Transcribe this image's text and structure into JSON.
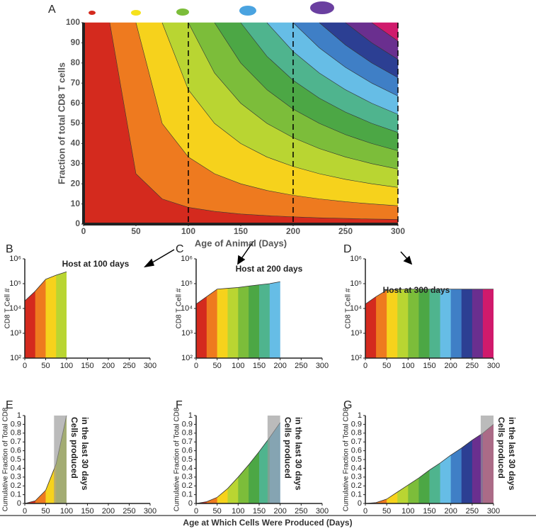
{
  "palette": {
    "band_edges": [
      0,
      25,
      50,
      75,
      100,
      125,
      150,
      175,
      200,
      225,
      250,
      275,
      300
    ],
    "colors": [
      "#d42a1e",
      "#ee7a1f",
      "#f6d21c",
      "#b9d532",
      "#7cbd3a",
      "#4ca745",
      "#4fb48e",
      "#66bde6",
      "#3f7fc6",
      "#2c3f93",
      "#6a2f8f",
      "#d01a6c"
    ]
  },
  "footer": {
    "x_label": "Age at Which Cells Were Produced (Days)"
  },
  "chart_data": [
    {
      "type": "contour",
      "panel": "A",
      "x_label": "Age of Animal (Days)",
      "y_label": "Fraction of total CD8 T cells",
      "xlim": [
        0,
        300
      ],
      "ylim": [
        0,
        100
      ],
      "xticks": [
        0,
        50,
        100,
        150,
        200,
        250,
        300
      ],
      "yticks": [
        0,
        10,
        20,
        30,
        40,
        50,
        60,
        70,
        80,
        90,
        100
      ],
      "vlines": [
        100,
        200,
        300
      ],
      "contours": [
        {
          "x": [
            25,
            50,
            75,
            100,
            125,
            150,
            175,
            200,
            225,
            250,
            275,
            300
          ],
          "values": [
            100,
            25,
            12.5,
            8.3,
            6.3,
            5,
            4.2,
            3.6,
            3.1,
            2.8,
            2.5,
            2.3
          ]
        },
        {
          "x": [
            50,
            75,
            100,
            125,
            150,
            175,
            200,
            225,
            250,
            275,
            300
          ],
          "values": [
            100,
            50,
            33.3,
            25,
            20,
            16.7,
            14.3,
            12.5,
            11.1,
            10,
            9.1
          ]
        },
        {
          "x": [
            75,
            100,
            125,
            150,
            175,
            200,
            225,
            250,
            275,
            300
          ],
          "values": [
            100,
            66.7,
            50,
            40,
            33.3,
            28.6,
            25,
            22.2,
            20,
            18.2
          ]
        },
        {
          "x": [
            100,
            125,
            150,
            175,
            200,
            225,
            250,
            275,
            300
          ],
          "values": [
            100,
            75,
            60,
            50,
            42.9,
            37.5,
            33.3,
            30,
            27.3
          ]
        },
        {
          "x": [
            125,
            150,
            175,
            200,
            225,
            250,
            275,
            300
          ],
          "values": [
            100,
            80,
            66.7,
            57.1,
            50,
            44.4,
            40,
            36.4
          ]
        },
        {
          "x": [
            150,
            175,
            200,
            225,
            250,
            275,
            300
          ],
          "values": [
            100,
            83.3,
            71.4,
            62.5,
            55.6,
            50,
            45.5
          ]
        },
        {
          "x": [
            175,
            200,
            225,
            250,
            275,
            300
          ],
          "values": [
            100,
            85.7,
            75,
            66.7,
            60,
            54.5
          ]
        },
        {
          "x": [
            200,
            225,
            250,
            275,
            300
          ],
          "values": [
            100,
            87.5,
            77.8,
            70,
            63.6
          ]
        },
        {
          "x": [
            225,
            250,
            275,
            300
          ],
          "values": [
            100,
            88.9,
            80,
            72.7
          ]
        },
        {
          "x": [
            250,
            275,
            300
          ],
          "values": [
            100,
            90,
            81.8
          ]
        },
        {
          "x": [
            275,
            300
          ],
          "values": [
            100,
            90.9
          ]
        }
      ]
    },
    {
      "type": "log-area",
      "panel": "B",
      "title": "Host at 100 days",
      "y_label": "CD8 T Cell #",
      "log_y": true,
      "xlim": [
        0,
        300
      ],
      "ylim": [
        100,
        1000000
      ],
      "xticks": [
        0,
        50,
        100,
        150,
        200,
        250,
        300
      ],
      "yticks": [
        {
          "value": 100,
          "label": "10²"
        },
        {
          "value": 1000,
          "label": "10³"
        },
        {
          "value": 10000,
          "label": "10⁴"
        },
        {
          "value": 100000,
          "label": "10⁵"
        },
        {
          "value": 1000000,
          "label": "10⁶"
        }
      ],
      "x": [
        0,
        25,
        50,
        75,
        100
      ],
      "values": [
        20000,
        50000,
        150000,
        220000,
        300000
      ]
    },
    {
      "type": "log-area",
      "panel": "C",
      "title": "Host at 200 days",
      "y_label": "CD8 T Cell #",
      "log_y": true,
      "xlim": [
        0,
        300
      ],
      "ylim": [
        100,
        1000000
      ],
      "xticks": [
        0,
        50,
        100,
        150,
        200,
        250,
        300
      ],
      "yticks": [
        {
          "value": 100,
          "label": "10²"
        },
        {
          "value": 1000,
          "label": "10³"
        },
        {
          "value": 10000,
          "label": "10⁴"
        },
        {
          "value": 100000,
          "label": "10⁵"
        },
        {
          "value": 1000000,
          "label": "10⁶"
        }
      ],
      "x": [
        0,
        25,
        50,
        75,
        100,
        125,
        150,
        175,
        200
      ],
      "values": [
        15000,
        30000,
        60000,
        65000,
        70000,
        80000,
        90000,
        100000,
        120000
      ]
    },
    {
      "type": "log-area",
      "panel": "D",
      "title": "Host at 300 days",
      "y_label": "CD8 T Cell #",
      "log_y": true,
      "xlim": [
        0,
        300
      ],
      "ylim": [
        100,
        1000000
      ],
      "xticks": [
        0,
        50,
        100,
        150,
        200,
        250,
        300
      ],
      "yticks": [
        {
          "value": 100,
          "label": "10²"
        },
        {
          "value": 1000,
          "label": "10³"
        },
        {
          "value": 10000,
          "label": "10⁴"
        },
        {
          "value": 100000,
          "label": "10⁵"
        },
        {
          "value": 1000000,
          "label": "10⁶"
        }
      ],
      "x": [
        0,
        25,
        50,
        75,
        100,
        125,
        150,
        175,
        200,
        225,
        250,
        275,
        300
      ],
      "values": [
        15000,
        30000,
        55000,
        58000,
        60000,
        60000,
        60000,
        60000,
        60000,
        60000,
        60000,
        60000,
        60000
      ]
    },
    {
      "type": "cumulative",
      "panel": "E",
      "y_label": "Cumulative Fraction of Total CD8",
      "annotation": [
        "Cells produced",
        "in the last 30 days"
      ],
      "xlim": [
        0,
        300
      ],
      "ylim": [
        0,
        1
      ],
      "xticks": [
        0,
        50,
        100,
        150,
        200,
        250,
        300
      ],
      "yticks": [
        0,
        0.1,
        0.2,
        0.3,
        0.4,
        0.5,
        0.6,
        0.7,
        0.8,
        0.9,
        1
      ],
      "shade": [
        70,
        100
      ],
      "x": [
        0,
        25,
        50,
        75,
        100
      ],
      "values": [
        0,
        0.03,
        0.15,
        0.45,
        1
      ]
    },
    {
      "type": "cumulative",
      "panel": "F",
      "y_label": "Cumulative Fraction of Total CD8",
      "annotation": [
        "Cells produced",
        "in the last 30 days"
      ],
      "xlim": [
        0,
        300
      ],
      "ylim": [
        0,
        1
      ],
      "xticks": [
        0,
        50,
        100,
        150,
        200,
        250,
        300
      ],
      "yticks": [
        0,
        0.1,
        0.2,
        0.3,
        0.4,
        0.5,
        0.6,
        0.7,
        0.8,
        0.9,
        1
      ],
      "shade": [
        170,
        200
      ],
      "x": [
        0,
        25,
        50,
        75,
        100,
        125,
        150,
        175,
        200
      ],
      "values": [
        0,
        0.02,
        0.07,
        0.17,
        0.3,
        0.44,
        0.59,
        0.75,
        0.92
      ]
    },
    {
      "type": "cumulative",
      "panel": "G",
      "y_label": "Cumulative Fraction of Total CD8",
      "annotation": [
        "Cells produced",
        "in the last 30 days"
      ],
      "xlim": [
        0,
        300
      ],
      "ylim": [
        0,
        1
      ],
      "xticks": [
        0,
        50,
        100,
        150,
        200,
        250,
        300
      ],
      "yticks": [
        0,
        0.1,
        0.2,
        0.3,
        0.4,
        0.5,
        0.6,
        0.7,
        0.8,
        0.9,
        1
      ],
      "shade": [
        270,
        300
      ],
      "x": [
        0,
        25,
        50,
        75,
        100,
        125,
        150,
        175,
        200,
        225,
        250,
        275,
        300
      ],
      "values": [
        0,
        0.01,
        0.05,
        0.13,
        0.21,
        0.29,
        0.38,
        0.46,
        0.55,
        0.63,
        0.72,
        0.8,
        0.9
      ]
    }
  ]
}
